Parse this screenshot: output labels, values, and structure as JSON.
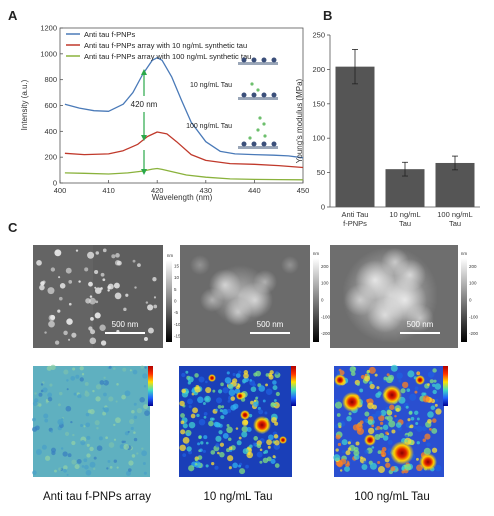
{
  "panels": {
    "a": "A",
    "b": "B",
    "c": "C"
  },
  "chart_data": [
    {
      "type": "line",
      "xlabel": "Wavelength (nm)",
      "ylabel": "Intensity (a.u.)",
      "xlim": [
        400,
        450
      ],
      "ylim": [
        0,
        1200
      ],
      "xticks": [
        400,
        410,
        420,
        430,
        440,
        450
      ],
      "yticks": [
        0,
        200,
        400,
        600,
        800,
        1000,
        1200
      ],
      "grid": false,
      "legend": "top-left",
      "annotations": [
        "420 nm",
        "10 ng/mL Tau",
        "100 ng/mL Tau"
      ],
      "series": [
        {
          "name": "Anti tau f-PNPs",
          "color": "#4a7ab8",
          "x": [
            401,
            404,
            407,
            410,
            413,
            415,
            417,
            419,
            420,
            421,
            423,
            425,
            427,
            430,
            433,
            436,
            440,
            444,
            447,
            450
          ],
          "y": [
            610,
            580,
            560,
            555,
            610,
            700,
            840,
            950,
            970,
            950,
            820,
            640,
            470,
            320,
            245,
            225,
            220,
            215,
            210,
            195
          ]
        },
        {
          "name": "Anti tau f-PNPs array with 10 ng/mL synthetic tau",
          "color": "#c0392b",
          "x": [
            401,
            405,
            410,
            413,
            416,
            418,
            420,
            422,
            424,
            427,
            430,
            435,
            440,
            445,
            450
          ],
          "y": [
            230,
            220,
            225,
            250,
            300,
            360,
            395,
            380,
            320,
            220,
            175,
            150,
            145,
            135,
            120
          ]
        },
        {
          "name": "Anti tau f-PNPs array with 100 ng/mL synthetic tau",
          "color": "#8ab23c",
          "x": [
            401,
            405,
            410,
            414,
            417,
            419,
            420,
            421,
            423,
            426,
            430,
            435,
            440,
            445,
            450
          ],
          "y": [
            78,
            75,
            70,
            78,
            92,
            108,
            112,
            105,
            88,
            62,
            45,
            32,
            28,
            26,
            25
          ]
        }
      ]
    },
    {
      "type": "bar",
      "ylabel": "Young's modulus (MPa)",
      "ylim": [
        0,
        250
      ],
      "yticks": [
        0,
        50,
        100,
        150,
        200,
        250
      ],
      "categories": [
        "Anti Tau f-PNPs",
        "10 ng/mL Tau",
        "100 ng/mL Tau"
      ],
      "category_lines": [
        [
          "Anti Tau",
          "f-PNPs"
        ],
        [
          "10 ng/mL",
          "Tau"
        ],
        [
          "100 ng/mL",
          "Tau"
        ]
      ],
      "values": [
        204,
        55,
        64
      ],
      "errors": [
        25,
        10,
        10
      ],
      "color": "#555555"
    }
  ],
  "afm": {
    "scalebar": "500 nm",
    "colorbar_unit": "nm",
    "colorbar_ticks": [
      [
        "15",
        "10",
        "5",
        "0",
        "-5",
        "-10",
        "-15"
      ],
      [
        "200",
        "100",
        "0",
        "-100",
        "-200"
      ],
      [
        "200",
        "100",
        "0",
        "-100",
        "-200"
      ]
    ],
    "captions": [
      "Anti tau f-PNPs array",
      "10 ng/mL Tau",
      "100 ng/mL Tau"
    ]
  },
  "colors": {
    "arrow": "#2aa84a",
    "bar": "#555555",
    "legend_blue": "#4a7ab8",
    "legend_red": "#c0392b",
    "legend_green": "#8ab23c"
  }
}
